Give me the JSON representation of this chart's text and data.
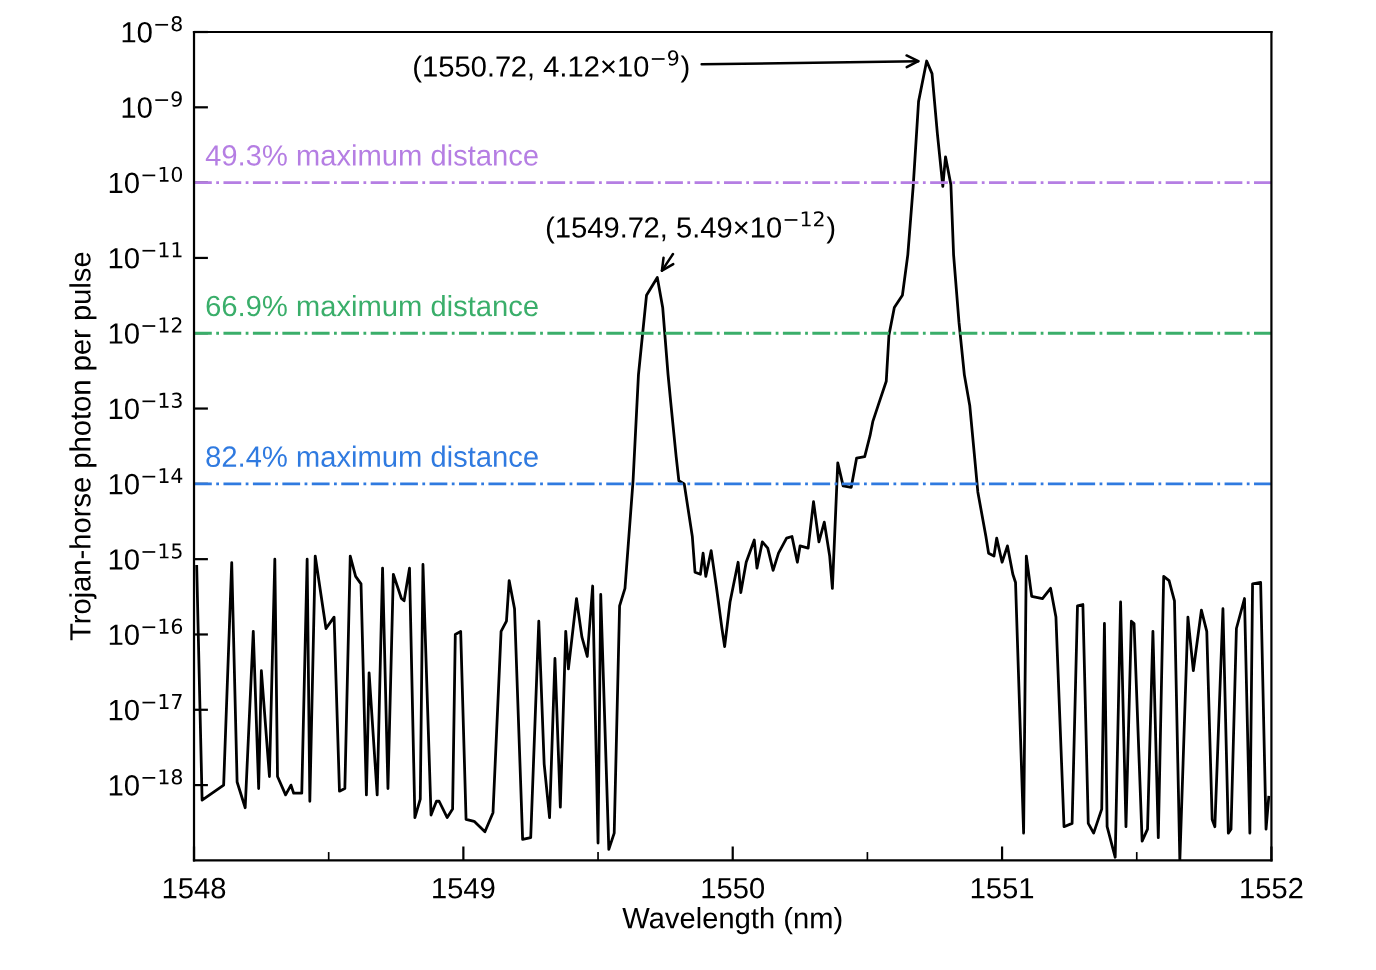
{
  "chart_data": {
    "type": "line",
    "xlabel": "Wavelength (nm)",
    "ylabel": "Trojan-horse photon per pulse",
    "log": "y",
    "xlim": [
      1548,
      1552
    ],
    "xticks": [
      1548,
      1549,
      1550,
      1551,
      1552
    ],
    "ylim": [
      1e-19,
      1e-08
    ],
    "yticks": [
      {
        "value": 1e-08,
        "label": "10$^{−8}$"
      },
      {
        "value": 1e-09,
        "label": "10$^{−9}$"
      },
      {
        "value": 1e-10,
        "label": "10$^{−10}$"
      },
      {
        "value": 1e-11,
        "label": "10$^{−11}$"
      },
      {
        "value": 1e-12,
        "label": "10$^{−12}$"
      },
      {
        "value": 1e-13,
        "label": "10$^{−13}$"
      },
      {
        "value": 1e-14,
        "label": "10$^{−14}$"
      },
      {
        "value": 1e-15,
        "label": "10$^{−15}$"
      },
      {
        "value": 1e-16,
        "label": "10$^{−16}$"
      },
      {
        "value": 1e-17,
        "label": "10$^{−17}$"
      },
      {
        "value": 1e-18,
        "label": "10$^{−18}$"
      }
    ],
    "grid": false,
    "marker": "none",
    "line_style": "solid",
    "series": [
      {
        "color": "#000000",
        "x": [
          1548.01,
          1548.03,
          1548.11,
          1548.14,
          1548.16,
          1548.19,
          1548.22,
          1548.24,
          1548.25,
          1548.28,
          1548.3,
          1548.31,
          1548.34,
          1548.36,
          1548.37,
          1548.4,
          1548.42,
          1548.43,
          1548.45,
          1548.49,
          1548.52,
          1548.54,
          1548.56,
          1548.58,
          1548.6,
          1548.62,
          1548.64,
          1548.65,
          1548.68,
          1548.7,
          1548.72,
          1548.74,
          1548.77,
          1548.78,
          1548.8,
          1548.82,
          1548.84,
          1548.85,
          1548.88,
          1548.9,
          1548.91,
          1548.94,
          1548.96,
          1548.97,
          1548.99,
          1549.01,
          1549.04,
          1549.08,
          1549.11,
          1549.14,
          1549.16,
          1549.17,
          1549.19,
          1549.22,
          1549.25,
          1549.28,
          1549.3,
          1549.32,
          1549.34,
          1549.36,
          1549.38,
          1549.39,
          1549.42,
          1549.44,
          1549.46,
          1549.48,
          1549.5,
          1549.51,
          1549.54,
          1549.56,
          1549.58,
          1549.6,
          1549.63,
          1549.65,
          1549.68,
          1549.72,
          1549.74,
          1549.76,
          1549.77,
          1549.79,
          1549.8,
          1549.82,
          1549.85,
          1549.86,
          1549.88,
          1549.89,
          1549.9,
          1549.92,
          1549.94,
          1549.96,
          1549.97,
          1549.99,
          1550.02,
          1550.03,
          1550.05,
          1550.08,
          1550.09,
          1550.11,
          1550.13,
          1550.15,
          1550.17,
          1550.2,
          1550.22,
          1550.24,
          1550.25,
          1550.28,
          1550.3,
          1550.32,
          1550.34,
          1550.36,
          1550.37,
          1550.39,
          1550.41,
          1550.44,
          1550.46,
          1550.49,
          1550.51,
          1550.52,
          1550.54,
          1550.57,
          1550.58,
          1550.6,
          1550.63,
          1550.65,
          1550.67,
          1550.69,
          1550.72,
          1550.74,
          1550.76,
          1550.78,
          1550.79,
          1550.81,
          1550.82,
          1550.84,
          1550.86,
          1550.88,
          1550.9,
          1550.91,
          1550.94,
          1550.95,
          1550.97,
          1550.98,
          1551.0,
          1551.02,
          1551.04,
          1551.05,
          1551.08,
          1551.09,
          1551.11,
          1551.15,
          1551.18,
          1551.2,
          1551.23,
          1551.26,
          1551.28,
          1551.3,
          1551.32,
          1551.34,
          1551.37,
          1551.38,
          1551.39,
          1551.42,
          1551.44,
          1551.46,
          1551.48,
          1551.49,
          1551.52,
          1551.54,
          1551.56,
          1551.58,
          1551.6,
          1551.62,
          1551.64,
          1551.66,
          1551.69,
          1551.71,
          1551.74,
          1551.76,
          1551.78,
          1551.79,
          1551.82,
          1551.84,
          1551.85,
          1551.87,
          1551.9,
          1551.92,
          1551.93,
          1551.96,
          1551.98,
          1551.99
        ],
        "values": [
          8e-16,
          6.3e-19,
          1e-18,
          9e-16,
          1.1e-18,
          5e-19,
          1.1e-16,
          9e-19,
          3.3e-17,
          1.3e-18,
          1e-15,
          1.3e-18,
          7.4e-19,
          1e-18,
          7.8e-19,
          7.8e-19,
          1e-15,
          6.1e-19,
          1.1e-15,
          1.2e-16,
          1.7e-16,
          8.3e-19,
          9e-19,
          1.1e-15,
          5.9e-16,
          4.7e-16,
          7.4e-19,
          3.1e-17,
          7.4e-19,
          7.6e-16,
          9e-19,
          6.3e-16,
          3e-16,
          2.8e-16,
          7.6e-16,
          3.7e-19,
          6.5e-19,
          8.5e-16,
          4e-19,
          6.1e-19,
          6.1e-19,
          3.7e-19,
          4.8e-19,
          1e-16,
          1.1e-16,
          3.5e-19,
          3.3e-19,
          2.4e-19,
          4.3e-19,
          1.1e-16,
          1.5e-16,
          5.2e-16,
          2.2e-16,
          1.9e-19,
          2e-19,
          1.5e-16,
          1.9e-18,
          3.7e-19,
          4.8e-17,
          5.1e-19,
          1.1e-16,
          3.5e-17,
          3e-16,
          9.3e-17,
          5.1e-17,
          4.4e-16,
          1.7e-19,
          3.4e-16,
          1.4e-19,
          2.3e-19,
          2.4e-16,
          4.1e-16,
          1.1e-14,
          2.8e-13,
          3.2e-12,
          5.49e-12,
          2.2e-12,
          2.8e-13,
          1.2e-13,
          2.3e-14,
          1.1e-14,
          1e-14,
          2e-15,
          6.7e-16,
          6.3e-16,
          1.2e-15,
          5.9e-16,
          1.3e-15,
          4.1e-16,
          1.2e-16,
          6.9e-17,
          2.7e-16,
          9.1e-16,
          3.6e-16,
          9.1e-16,
          1.8e-15,
          7.6e-16,
          1.7e-15,
          1.4e-15,
          7.1e-16,
          1.2e-15,
          1.9e-15,
          2e-15,
          9.1e-16,
          1.5e-15,
          1.4e-15,
          5.8e-15,
          1.7e-15,
          3.1e-15,
          1.1e-15,
          4.1e-16,
          1.9e-14,
          9.4e-15,
          9e-15,
          2.2e-14,
          2.3e-14,
          4.4e-14,
          6.7e-14,
          1.1e-13,
          2.3e-13,
          9.4e-13,
          2.2e-12,
          3.2e-12,
          1.1e-11,
          8.9e-11,
          1.2e-09,
          4.12e-09,
          2.8e-09,
          4.4e-10,
          8.9e-11,
          2.2e-10,
          9.4e-11,
          1.1e-11,
          1.4e-12,
          2.8e-13,
          1.1e-13,
          1.9e-14,
          7.8e-15,
          2e-15,
          1.2e-15,
          1.1e-15,
          1.9e-15,
          9.1e-16,
          1.5e-15,
          6.3e-16,
          4.9e-16,
          2.3e-19,
          1.1e-15,
          3.2e-16,
          3e-16,
          4.1e-16,
          1.7e-16,
          2.8e-19,
          3.1e-19,
          2.4e-16,
          2.5e-16,
          3.1e-19,
          2.3e-19,
          4.8e-19,
          1.4e-16,
          2.8e-19,
          1.1e-19,
          2.7e-16,
          2.8e-19,
          1.5e-16,
          1.4e-16,
          1.8e-19,
          2.6e-19,
          1.1e-16,
          2e-19,
          5.9e-16,
          5.2e-16,
          2.8e-16,
          1e-19,
          1.7e-16,
          3.3e-17,
          2.1e-16,
          1.1e-16,
          3.5e-19,
          2.8e-19,
          2.2e-16,
          2.3e-19,
          2.6e-19,
          1.2e-16,
          3e-16,
          2.3e-19,
          4.7e-16,
          4.9e-16,
          2.6e-19,
          6.9e-19
        ]
      }
    ],
    "ref_lines": [
      {
        "axis": "y",
        "value": 1e-10,
        "label": "49.3% maximum distance",
        "color": "#b57ee3",
        "line_style": "dashdot"
      },
      {
        "axis": "y",
        "value": 1e-12,
        "label": "66.9% maximum distance",
        "color": "#3aae6a",
        "line_style": "dashdot"
      },
      {
        "axis": "y",
        "value": 1e-14,
        "label": "82.4% maximum distance",
        "color": "#2f7ae0",
        "line_style": "dashdot"
      }
    ],
    "annotations": [
      {
        "text": "(1550.72, 4.12×10$^{−9}$)",
        "x": 1550.72,
        "y": 4.12e-09
      },
      {
        "text": "(1549.72, 5.49×10$^{−12}$)",
        "x": 1549.72,
        "y": 5.49e-12
      }
    ]
  }
}
